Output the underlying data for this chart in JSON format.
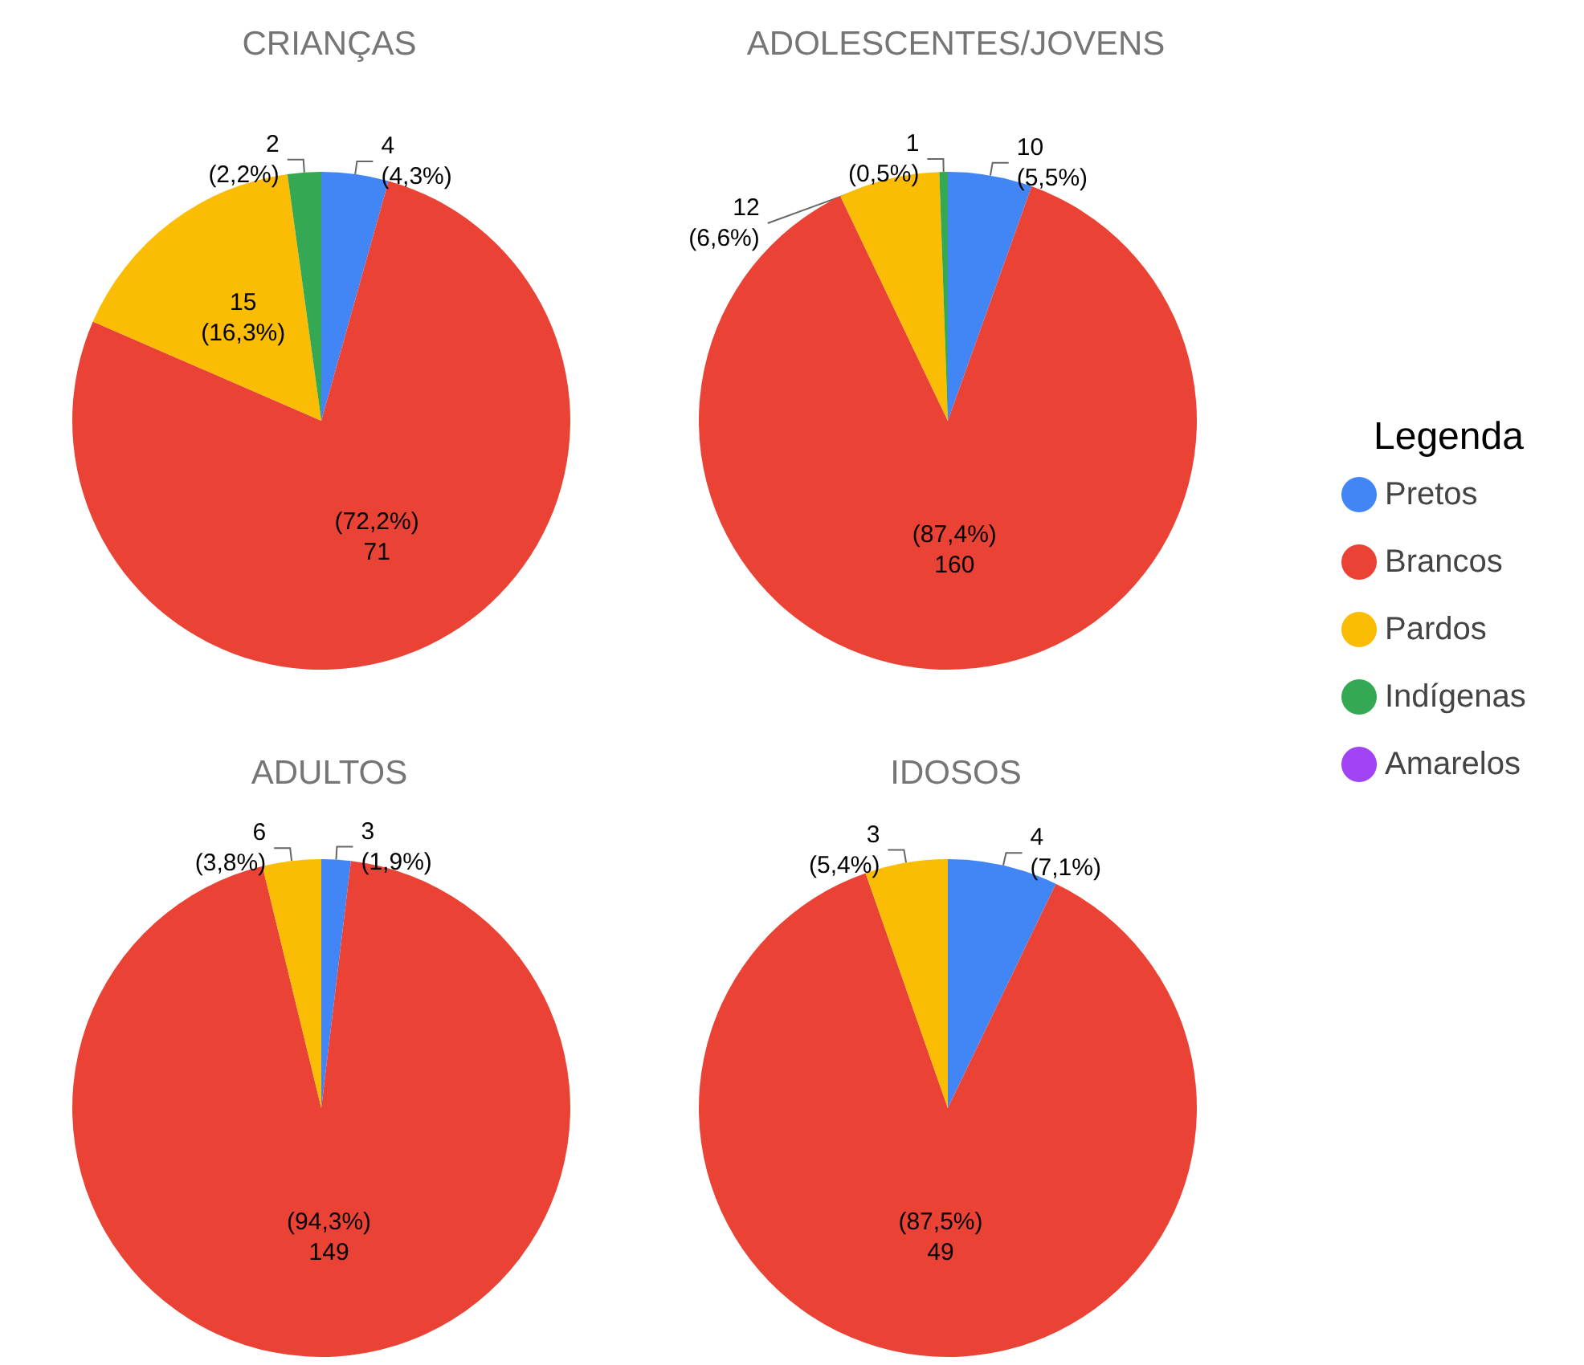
{
  "chart_data": {
    "type": "pie",
    "categories": [
      "Pretos",
      "Brancos",
      "Pardos",
      "Indígenas",
      "Amarelos"
    ],
    "colors": [
      "#4285f4",
      "#ea4335",
      "#fbbc04",
      "#34a853",
      "#a142f4"
    ],
    "legend": "right",
    "legend_title": "Legenda",
    "series": [
      {
        "name": "CRIANÇAS",
        "values": [
          4,
          71,
          15,
          2,
          0
        ],
        "value_labels": [
          "4\n(4,3%)",
          "(72,2%)\n71",
          "15\n(16,3%)",
          "2\n(2,2%)",
          null
        ]
      },
      {
        "name": "ADOLESCENTES/JOVENS",
        "values": [
          10,
          160,
          12,
          1,
          0
        ],
        "value_labels": [
          "10\n(5,5%)",
          "(87,4%)\n160",
          "12\n(6,6%)",
          "1\n(0,5%)",
          null
        ]
      },
      {
        "name": "ADULTOS",
        "values": [
          3,
          149,
          6,
          0,
          0
        ],
        "value_labels": [
          "3\n(1,9%)",
          "(94,3%)\n149",
          "6\n(3,8%)",
          null,
          null
        ]
      },
      {
        "name": "IDOSOS",
        "values": [
          4,
          49,
          3,
          0,
          0
        ],
        "value_labels": [
          "4\n(7,1%)",
          "(87,5%)\n49",
          "3\n(5,4%)",
          null,
          null
        ]
      }
    ]
  }
}
